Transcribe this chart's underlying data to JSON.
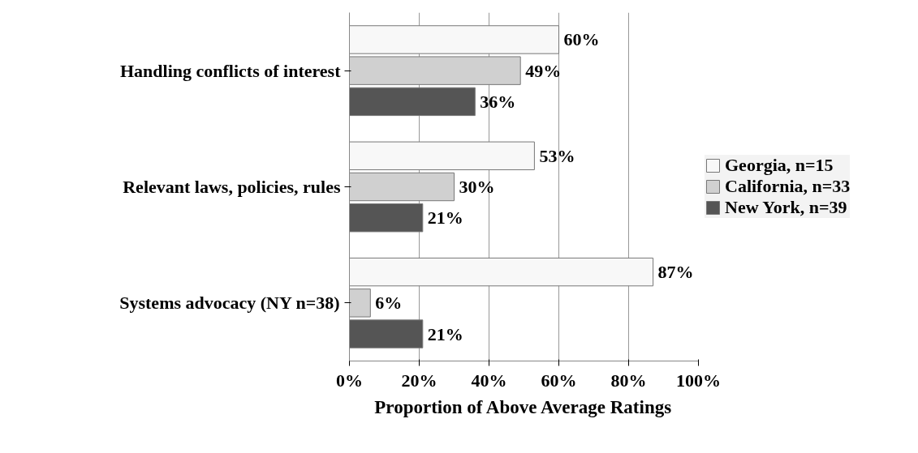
{
  "chart_data": {
    "type": "bar",
    "orientation": "horizontal",
    "xlabel": "Proportion of Above Average Ratings",
    "categories": [
      "Handling conflicts of interest",
      "Relevant laws, policies, rules",
      "Systems advocacy (NY n=38)"
    ],
    "series": [
      {
        "name": "Georgia, n=15",
        "color": "#f8f8f8",
        "values": [
          60,
          53,
          87
        ]
      },
      {
        "name": "California, n=33",
        "color": "#d0d0d0",
        "values": [
          49,
          30,
          6
        ]
      },
      {
        "name": "New York, n=39",
        "color": "#555555",
        "values": [
          36,
          21,
          21
        ]
      }
    ],
    "xlim": [
      0,
      100
    ],
    "xticks": [
      {
        "value": 0,
        "label": "0%"
      },
      {
        "value": 20,
        "label": "20%"
      },
      {
        "value": 40,
        "label": "40%"
      },
      {
        "value": 60,
        "label": "60%"
      },
      {
        "value": 80,
        "label": "80%"
      },
      {
        "value": 100,
        "label": "100%"
      }
    ],
    "value_labels": [
      [
        "60%",
        "53%",
        "87%"
      ],
      [
        "49%",
        "30%",
        "6%"
      ],
      [
        "36%",
        "21%",
        "21%"
      ]
    ],
    "grid": "x",
    "legend": "right"
  }
}
